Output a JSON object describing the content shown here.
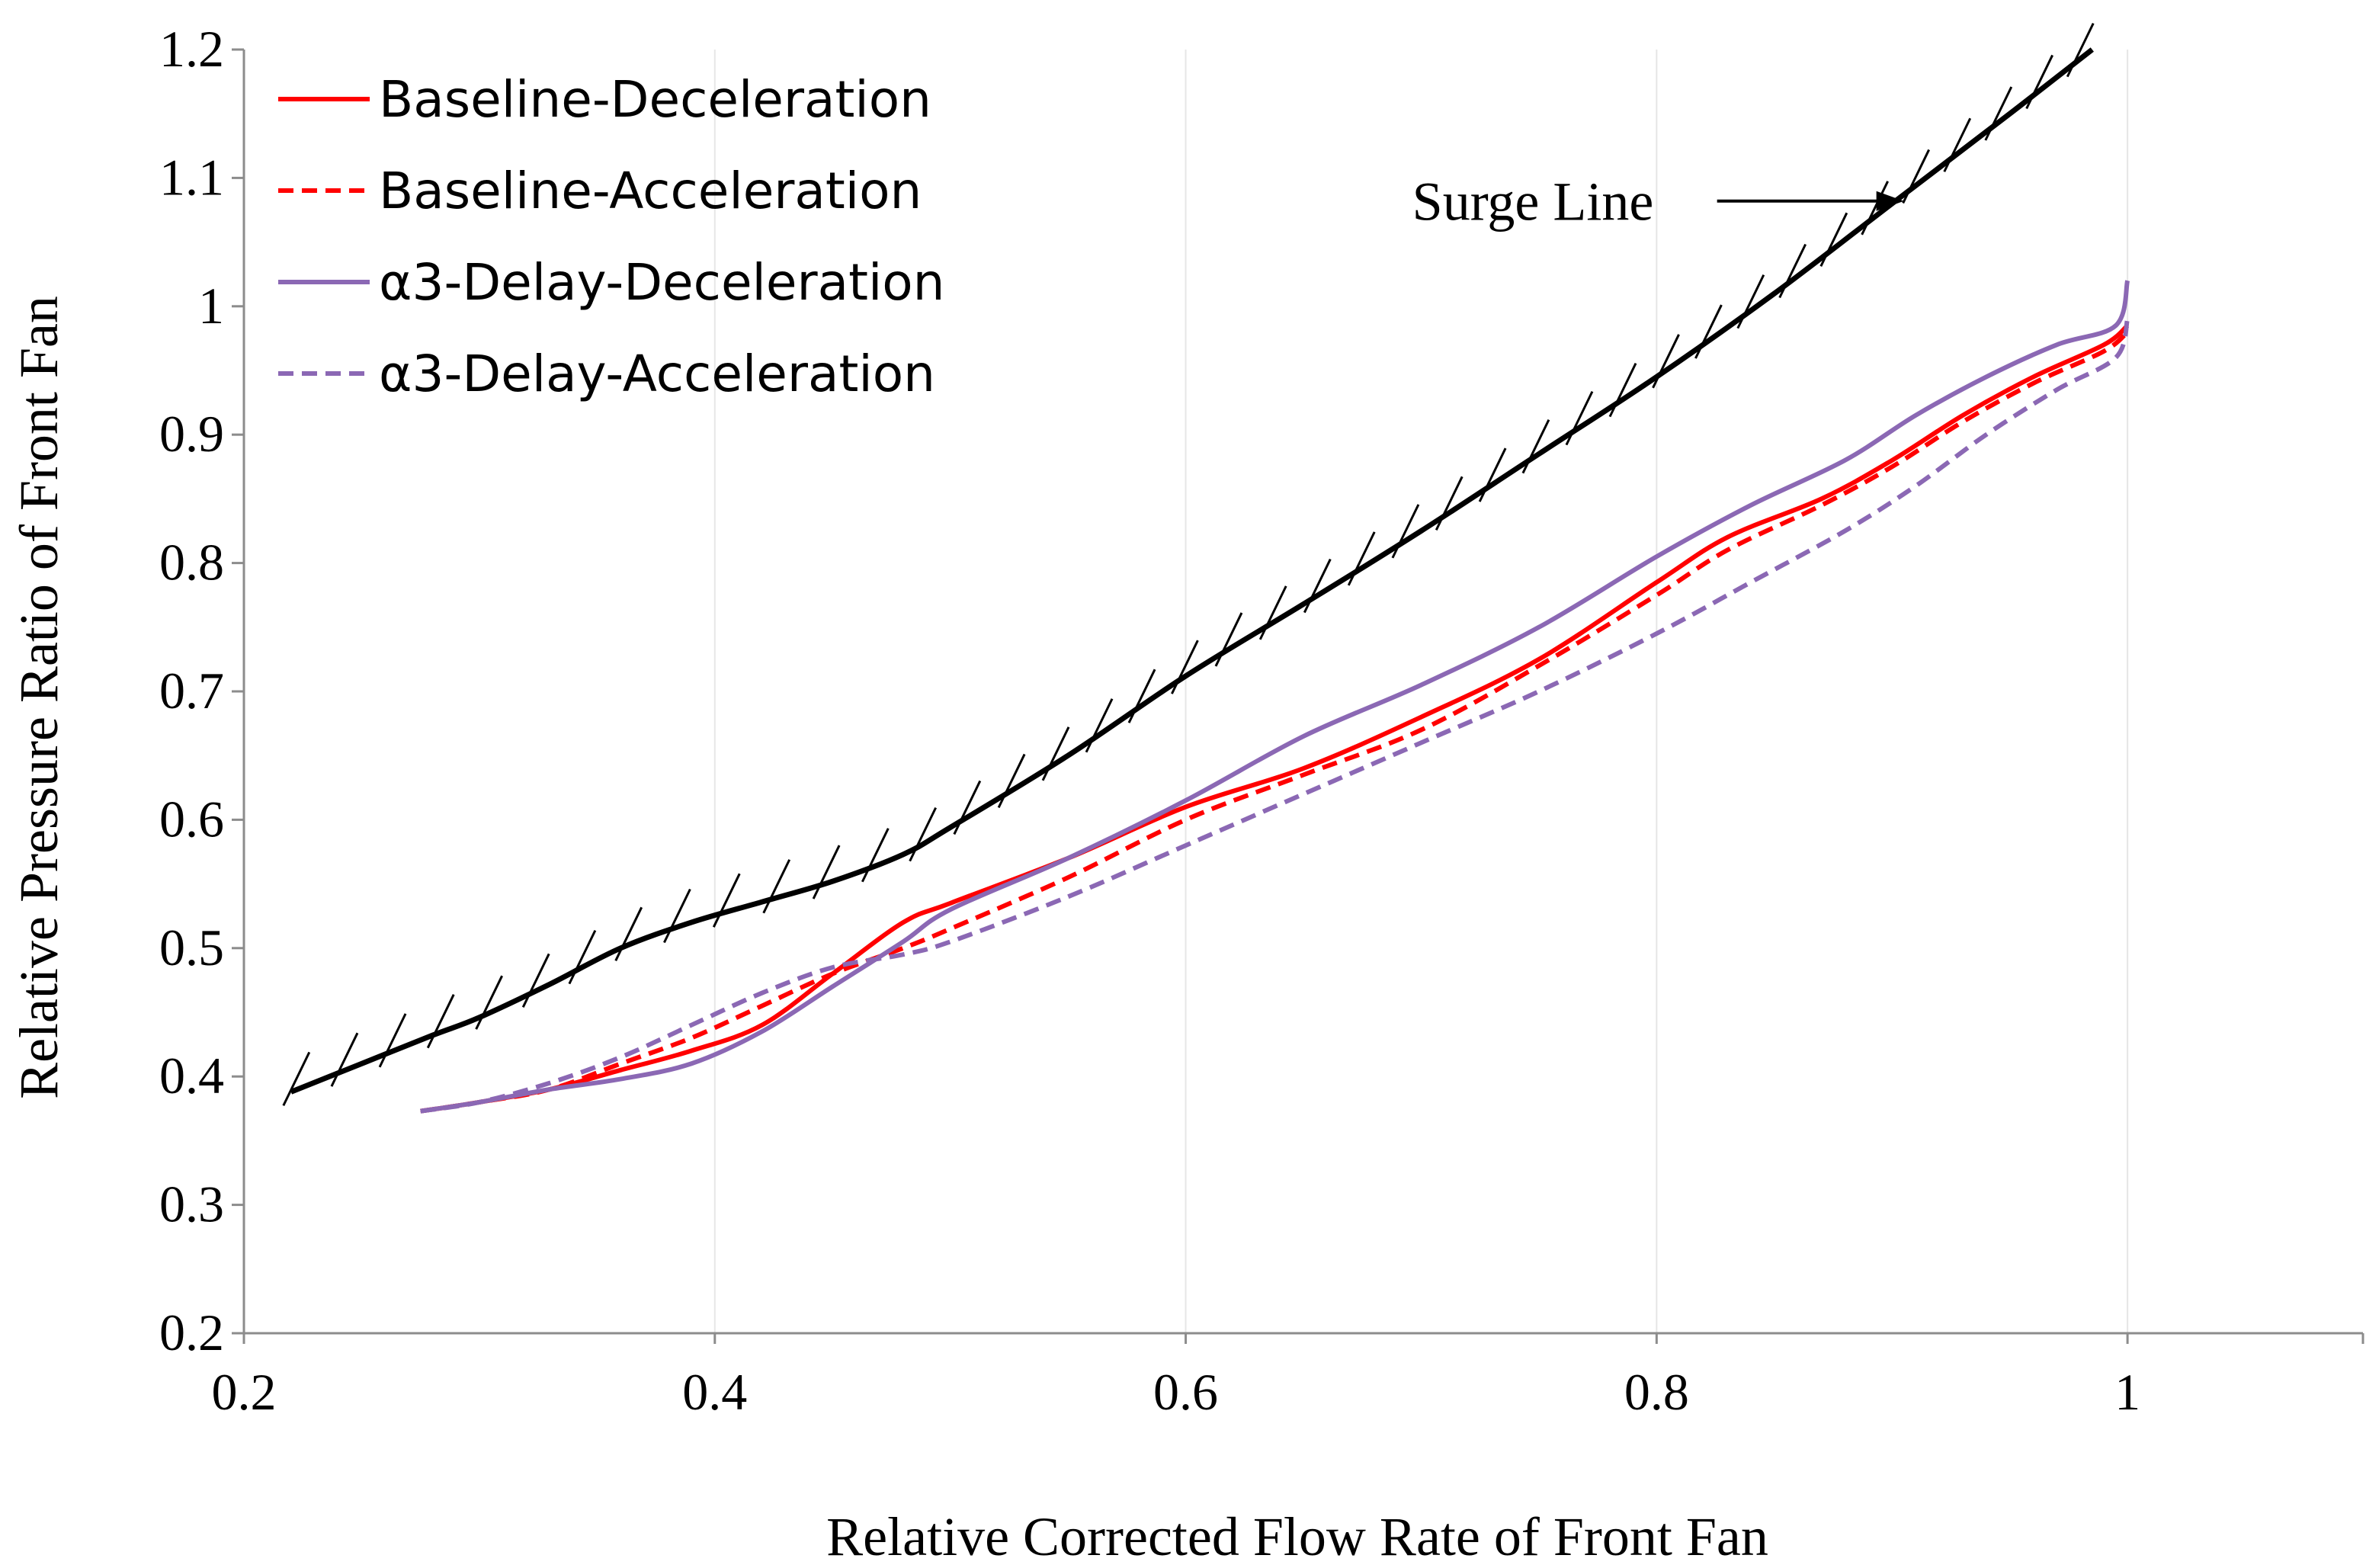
{
  "chart_data": {
    "type": "line",
    "xlabel": "Relative Corrected Flow Rate of Front Fan",
    "ylabel": "Relative Pressure Ratio of Front Fan",
    "xlim": [
      0.2,
      1.1
    ],
    "ylim": [
      0.2,
      1.2
    ],
    "xticks": [
      0.2,
      0.4,
      0.6,
      0.8,
      1.0
    ],
    "xtick_labels": [
      "0.2",
      "0.4",
      "0.6",
      "0.8",
      "1"
    ],
    "yticks": [
      0.2,
      0.3,
      0.4,
      0.5,
      0.6,
      0.7,
      0.8,
      0.9,
      1.0,
      1.1,
      1.2
    ],
    "ytick_labels": [
      "0.2",
      "0.3",
      "0.4",
      "0.5",
      "0.6",
      "0.7",
      "0.8",
      "0.9",
      "1",
      "1.1",
      "1.2"
    ],
    "grid": "vertical",
    "legend_position": "top-left",
    "series": [
      {
        "name": "Baseline-Deceleration",
        "color": "#ff0000",
        "style": "solid",
        "x": [
          0.275,
          0.3,
          0.33,
          0.36,
          0.39,
          0.42,
          0.45,
          0.48,
          0.5,
          0.55,
          0.6,
          0.65,
          0.7,
          0.75,
          0.8,
          0.83,
          0.87,
          0.9,
          0.93,
          0.96,
          0.99,
          1.0
        ],
        "y": [
          0.373,
          0.38,
          0.39,
          0.405,
          0.42,
          0.44,
          0.48,
          0.52,
          0.535,
          0.57,
          0.61,
          0.64,
          0.68,
          0.725,
          0.785,
          0.82,
          0.85,
          0.88,
          0.915,
          0.945,
          0.97,
          0.985
        ]
      },
      {
        "name": "Baseline-Acceleration",
        "color": "#ff0000",
        "style": "dashed",
        "x": [
          0.275,
          0.3,
          0.33,
          0.36,
          0.39,
          0.42,
          0.45,
          0.48,
          0.5,
          0.55,
          0.6,
          0.65,
          0.7,
          0.75,
          0.8,
          0.83,
          0.87,
          0.9,
          0.93,
          0.96,
          0.99,
          1.0
        ],
        "y": [
          0.373,
          0.38,
          0.39,
          0.41,
          0.43,
          0.455,
          0.48,
          0.5,
          0.515,
          0.555,
          0.6,
          0.635,
          0.67,
          0.72,
          0.775,
          0.81,
          0.845,
          0.875,
          0.91,
          0.94,
          0.965,
          0.98
        ]
      },
      {
        "name": "α3-Delay-Deceleration",
        "color": "#8b68b4",
        "style": "solid",
        "x": [
          0.275,
          0.3,
          0.33,
          0.36,
          0.39,
          0.42,
          0.45,
          0.48,
          0.5,
          0.55,
          0.6,
          0.65,
          0.7,
          0.75,
          0.8,
          0.84,
          0.88,
          0.91,
          0.94,
          0.97,
          0.995,
          1.0
        ],
        "y": [
          0.373,
          0.38,
          0.39,
          0.398,
          0.41,
          0.435,
          0.47,
          0.505,
          0.53,
          0.57,
          0.615,
          0.665,
          0.705,
          0.75,
          0.805,
          0.845,
          0.88,
          0.915,
          0.945,
          0.97,
          0.985,
          1.02
        ]
      },
      {
        "name": "α3-Delay-Acceleration",
        "color": "#8b68b4",
        "style": "dashed",
        "x": [
          0.275,
          0.3,
          0.33,
          0.36,
          0.39,
          0.42,
          0.45,
          0.48,
          0.5,
          0.55,
          0.6,
          0.65,
          0.7,
          0.75,
          0.8,
          0.84,
          0.88,
          0.91,
          0.94,
          0.97,
          0.995,
          1.0
        ],
        "y": [
          0.373,
          0.38,
          0.395,
          0.415,
          0.44,
          0.465,
          0.485,
          0.495,
          0.505,
          0.54,
          0.58,
          0.62,
          0.66,
          0.7,
          0.745,
          0.785,
          0.825,
          0.86,
          0.9,
          0.935,
          0.96,
          0.99
        ]
      }
    ],
    "surge_line": {
      "color": "#000000",
      "style": "solid",
      "hatched": true,
      "x": [
        0.22,
        0.25,
        0.28,
        0.3,
        0.33,
        0.36,
        0.39,
        0.42,
        0.45,
        0.48,
        0.5,
        0.55,
        0.6,
        0.65,
        0.7,
        0.75,
        0.8,
        0.85,
        0.9,
        0.95,
        0.985
      ],
      "y": [
        0.388,
        0.41,
        0.432,
        0.446,
        0.472,
        0.5,
        0.52,
        0.536,
        0.552,
        0.573,
        0.594,
        0.65,
        0.712,
        0.768,
        0.825,
        0.885,
        0.945,
        1.01,
        1.08,
        1.15,
        1.2
      ]
    },
    "annotations": [
      {
        "text": "Surge Line",
        "target_x": 0.905,
        "target_y": 1.082
      }
    ]
  }
}
